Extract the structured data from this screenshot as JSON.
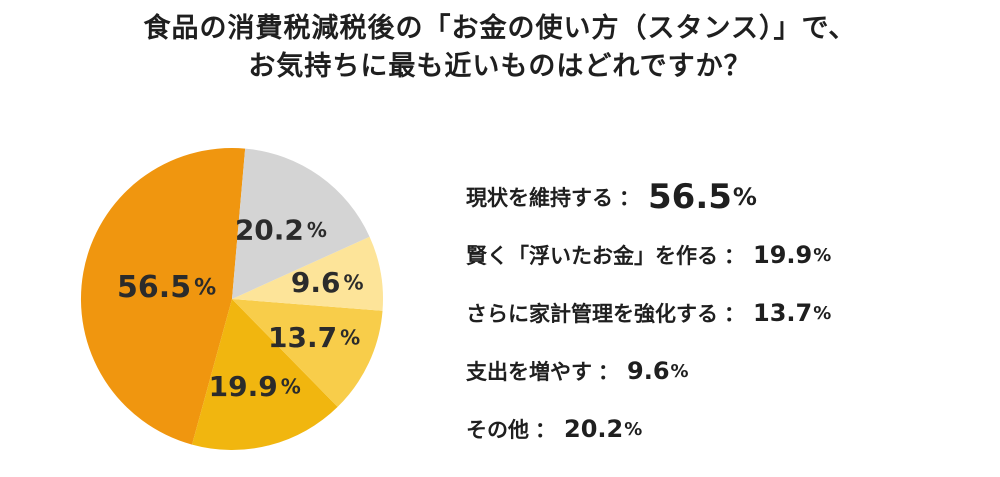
{
  "title_lines": [
    "食品の消費税減税後の「お金の使い方（スタンス）」で、",
    "お気持ちに最も近いものはどれですか？"
  ],
  "chart_data": {
    "type": "pie",
    "title": "食品の消費税減税後の「お金の使い方（スタンス）」で、お気持ちに最も近いものはどれですか？",
    "unit": "%",
    "slices": [
      {
        "label": "現状を維持する",
        "value": 56.5,
        "value_text": "56.5",
        "color": "#f0960f"
      },
      {
        "label": "賢く「浮いたお金」を作る",
        "value": 19.9,
        "value_text": "19.9",
        "color": "#f1b60f"
      },
      {
        "label": "さらに家計管理を強化する",
        "value": 13.7,
        "value_text": "13.7",
        "color": "#f8cd4a"
      },
      {
        "label": "支出を増やす",
        "value": 9.6,
        "value_text": "9.6",
        "color": "#fde499"
      },
      {
        "label": "その他",
        "value": 20.2,
        "value_text": "20.2",
        "color": "#d4d4d4"
      }
    ]
  },
  "legend": {
    "separator": "：",
    "percent_sign": "%"
  }
}
